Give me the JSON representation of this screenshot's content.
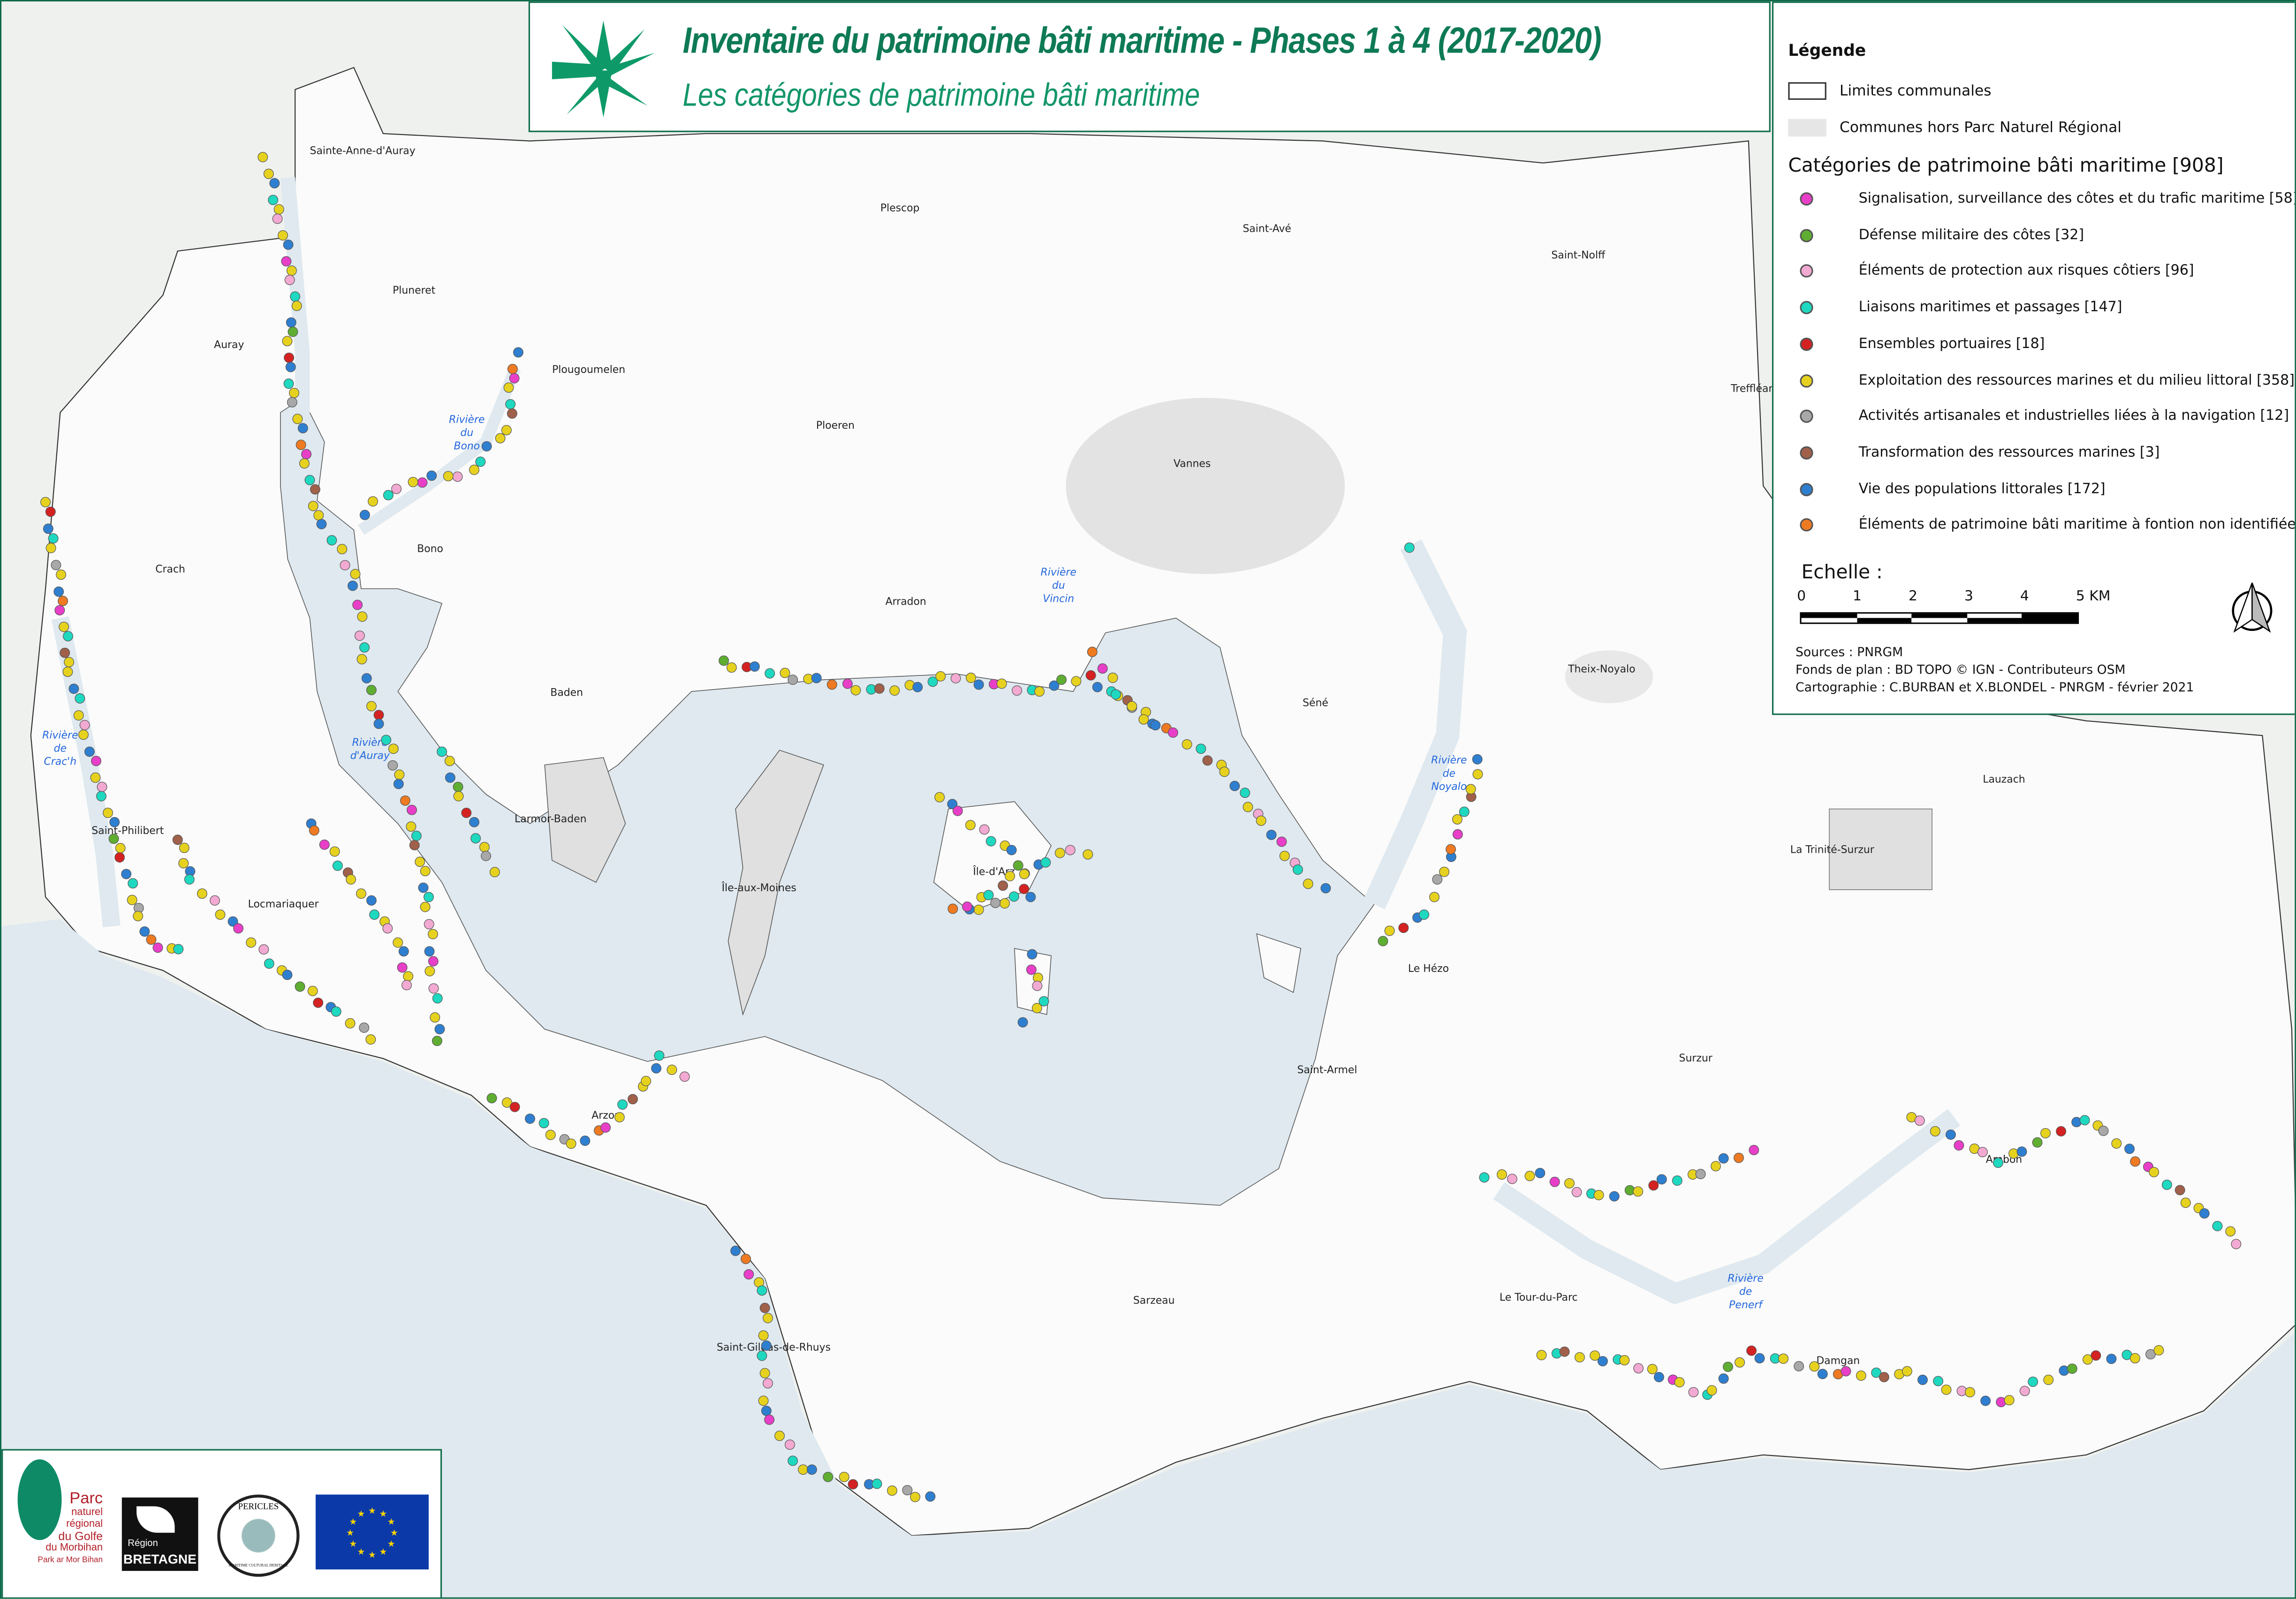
{
  "title": {
    "line1": "Inventaire du patrimoine bâti maritime - Phases 1 à 4 (2017-2020)",
    "line2": "Les catégories de patrimoine bâti maritime"
  },
  "legend": {
    "title": "Légende",
    "limits_label": "Limites communales",
    "outside_label": "Communes hors Parc Naturel Régional",
    "categories_title": "Catégories de patrimoine bâti maritime [908]",
    "categories": [
      {
        "label": "Signalisation, surveillance des côtes et du trafic maritime [58]",
        "color": "#e83fc8"
      },
      {
        "label": "Défense militaire des côtes [32]",
        "color": "#5fae32"
      },
      {
        "label": "Éléments de protection aux risques côtiers [96]",
        "color": "#f2a9d2"
      },
      {
        "label": "Liaisons maritimes et passages [147]",
        "color": "#1fd8c0"
      },
      {
        "label": "Ensembles portuaires [18]",
        "color": "#d42222"
      },
      {
        "label": "Exploitation des ressources marines et du milieu littoral [358]",
        "color": "#e6d21e"
      },
      {
        "label": "Activités artisanales et industrielles liées à la navigation [12]",
        "color": "#a8a8a8"
      },
      {
        "label": "Transformation des ressources marines [3]",
        "color": "#a0604a"
      },
      {
        "label": "Vie des populations littorales [172]",
        "color": "#2f7fd0"
      },
      {
        "label": "Éléments de patrimoine bâti maritime à fontion non identifiée [12]",
        "color": "#ee7a22"
      }
    ],
    "scale": {
      "title": "Echelle :",
      "ticks": [
        "0",
        "1",
        "2",
        "3",
        "4",
        "5 KM"
      ]
    },
    "north_arrow_icon": "north-arrow-icon",
    "credits": [
      "Sources : PNRGM",
      "Fonds de plan : BD TOPO © IGN - Contributeurs OSM",
      "Cartographie : C.BURBAN et X.BLONDEL -  PNRGM - février 2021"
    ]
  },
  "places": [
    "Sainte-Anne-d'Auray",
    "Pluneret",
    "Auray",
    "Plescop",
    "Saint-Avé",
    "Saint-Nolff",
    "Treffléan",
    "Plougoumelen",
    "Ploeren",
    "Vannes",
    "Bono",
    "Crach",
    "Arradon",
    "Baden",
    "Séné",
    "Theix-Noyalo",
    "Saint-Philibert",
    "Larmor-Baden",
    "Locmariaquer",
    "Île-aux-Moines",
    "Île-d'Arz",
    "La Trinité-Surzur",
    "Lauzach",
    "Le Hézo",
    "Saint-Armel",
    "Surzur",
    "Arzon",
    "Ambon",
    "Sarzeau",
    "Le Tour-du-Parc",
    "Saint-Gildas-de-Rhuys",
    "Damgan"
  ],
  "rivers": [
    [
      "Rivière",
      "du",
      "Bono"
    ],
    [
      "Rivière",
      "de",
      "Crac'h"
    ],
    [
      "Rivière",
      "d'Auray"
    ],
    [
      "Rivière",
      "du",
      "Vincin"
    ],
    [
      "Rivière",
      "de",
      "Noyalo"
    ],
    [
      "Rivière",
      "de",
      "Penerf"
    ]
  ],
  "colors": {
    "sea": "#dfe9ef",
    "land": "#fbfbfb",
    "outside": "#e6e6e6",
    "frame": "#0e6b4a",
    "title": "#0e7a55"
  },
  "logos": {
    "parc": [
      "Parc",
      "naturel",
      "régional",
      "du Golfe",
      "du Morbihan",
      "Park ar Mor Bihan"
    ],
    "region": [
      "Région",
      "BRETAGNE"
    ],
    "pericles": [
      "PERICLES",
      "MARITIME CULTURAL HERITAGE"
    ],
    "eu": "eu-flag"
  }
}
